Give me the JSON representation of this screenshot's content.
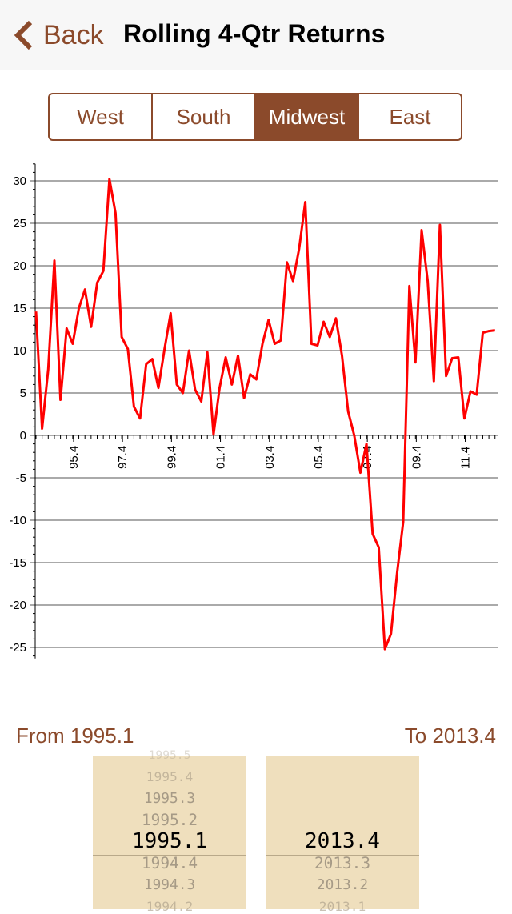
{
  "nav": {
    "back_label": "Back",
    "title": "Rolling 4-Qtr Returns"
  },
  "segments": {
    "items": [
      "West",
      "South",
      "Midwest",
      "East"
    ],
    "selected": "Midwest"
  },
  "range": {
    "from_label": "From 1995.1",
    "to_label": "To 2013.4"
  },
  "from_picker": {
    "rows": [
      "1995.5",
      "1995.4",
      "1995.3",
      "1995.2",
      "1995.1",
      "1994.4",
      "1994.3",
      "1994.2"
    ],
    "selected": "1995.1"
  },
  "to_picker": {
    "rows": [
      "2013.4",
      "2013.3",
      "2013.2",
      "2013.1"
    ],
    "selected": "2013.4"
  },
  "colors": {
    "accent": "#8b4a2b",
    "series": "#ff0000",
    "picker_bg": "#efdfbd"
  },
  "chart_data": {
    "type": "line",
    "ylim": [
      -25,
      30
    ],
    "yticks": [
      30,
      25,
      20,
      15,
      10,
      5,
      0,
      -5,
      -10,
      -15,
      -20,
      -25
    ],
    "xtick_labels": [
      "95.4",
      "97.4",
      "99.4",
      "01.4",
      "03.4",
      "05.4",
      "07.4",
      "09.4",
      "11.4"
    ],
    "x": [
      "1995.1",
      "1995.2",
      "1995.3",
      "1995.4",
      "1996.1",
      "1996.2",
      "1996.3",
      "1996.4",
      "1997.1",
      "1997.2",
      "1997.3",
      "1997.4",
      "1998.1",
      "1998.2",
      "1998.3",
      "1998.4",
      "1999.1",
      "1999.2",
      "1999.3",
      "1999.4",
      "2000.1",
      "2000.2",
      "2000.3",
      "2000.4",
      "2001.1",
      "2001.2",
      "2001.3",
      "2001.4",
      "2002.1",
      "2002.2",
      "2002.3",
      "2002.4",
      "2003.1",
      "2003.2",
      "2003.3",
      "2003.4",
      "2004.1",
      "2004.2",
      "2004.3",
      "2004.4",
      "2005.1",
      "2005.2",
      "2005.3",
      "2005.4",
      "2006.1",
      "2006.2",
      "2006.3",
      "2006.4",
      "2007.1",
      "2007.2",
      "2007.3",
      "2007.4",
      "2008.1",
      "2008.2",
      "2008.3",
      "2008.4",
      "2009.1",
      "2009.2",
      "2009.3",
      "2009.4",
      "2010.1",
      "2010.2",
      "2010.3",
      "2010.4",
      "2011.1",
      "2011.2",
      "2011.3",
      "2011.4",
      "2012.1",
      "2012.2",
      "2012.3",
      "2012.4",
      "2013.1",
      "2013.2",
      "2013.3",
      "2013.4"
    ],
    "series": [
      {
        "values": [
          14.6,
          0.8,
          7.8,
          20.6,
          4.2,
          12.6,
          10.8,
          15.0,
          17.2,
          12.8,
          18.0,
          19.4,
          30.2,
          26.2,
          11.6,
          10.2,
          3.4,
          2.0,
          8.4,
          9.0,
          5.6,
          10.2,
          14.4,
          6.0,
          5.0,
          10.0,
          5.4,
          4.0,
          9.8,
          0.1,
          5.6,
          9.2,
          6.0,
          9.4,
          4.4,
          7.2,
          6.6,
          10.8,
          13.6,
          10.8,
          11.2,
          20.4,
          18.2,
          22.0,
          27.5,
          10.8,
          10.6,
          13.4,
          11.6,
          13.8,
          9.4,
          2.8,
          0.0,
          -4.4,
          -1.0,
          -11.6,
          -13.2,
          -25.2,
          -23.4,
          -16.2,
          -10.2,
          17.6,
          8.6,
          24.2,
          18.2,
          6.4,
          24.8,
          7.0,
          9.1,
          9.2,
          2.0,
          5.2,
          4.8,
          12.1,
          12.3,
          12.4
        ]
      }
    ]
  }
}
